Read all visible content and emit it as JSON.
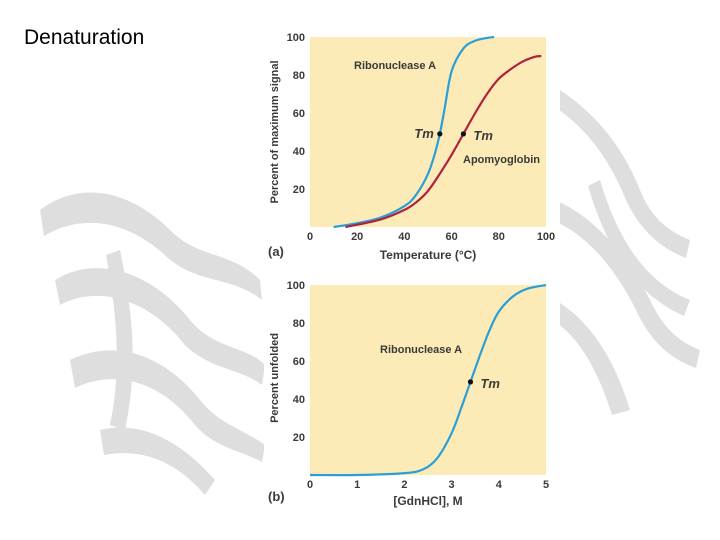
{
  "slide": {
    "title": "Denaturation"
  },
  "colors": {
    "plot_bg": "#fcebb6",
    "ribonuclease_curve": "#2a9fd6",
    "apomyoglobin_curve": "#b02040",
    "text": "#3a3a3a"
  },
  "chart_data": [
    {
      "panel_label": "(a)",
      "type": "line",
      "xlabel": "Temperature (°C)",
      "ylabel": "Percent of maximum signal",
      "xlim": [
        0,
        100
      ],
      "ylim": [
        0,
        100
      ],
      "x_ticks": [
        "0",
        "20",
        "40",
        "60",
        "80",
        "100"
      ],
      "y_ticks": [
        "20",
        "40",
        "60",
        "80",
        "100"
      ],
      "grid": false,
      "series": [
        {
          "name": "Ribonuclease A",
          "color": "#2a9fd6",
          "x": [
            10,
            20,
            30,
            40,
            45,
            50,
            53,
            55,
            57,
            60,
            65,
            70,
            75,
            78
          ],
          "y": [
            0,
            2,
            5,
            11,
            17,
            28,
            39,
            49,
            62,
            82,
            94,
            98,
            99.5,
            100
          ]
        },
        {
          "name": "Apomyoglobin",
          "color": "#b02040",
          "x": [
            15,
            30,
            40,
            45,
            50,
            55,
            60,
            65,
            70,
            75,
            80,
            85,
            90,
            95,
            98
          ],
          "y": [
            0,
            4,
            9,
            13,
            19,
            28,
            38,
            49,
            60,
            70,
            78,
            83,
            87,
            89.5,
            90
          ]
        }
      ],
      "annotations": [
        {
          "text": "Tm",
          "series": "Ribonuclease A",
          "x": 55,
          "y": 49
        },
        {
          "text": "Tm",
          "series": "Apomyoglobin",
          "x": 65,
          "y": 49
        }
      ]
    },
    {
      "panel_label": "(b)",
      "type": "line",
      "xlabel": "[GdnHCl], M",
      "ylabel": "Percent unfolded",
      "xlim": [
        0,
        5
      ],
      "ylim": [
        0,
        100
      ],
      "x_ticks": [
        "0",
        "1",
        "2",
        "3",
        "4",
        "5"
      ],
      "y_ticks": [
        "20",
        "40",
        "60",
        "80",
        "100"
      ],
      "grid": false,
      "series": [
        {
          "name": "Ribonuclease A",
          "color": "#2a9fd6",
          "x": [
            0,
            1,
            2,
            2.4,
            2.7,
            3.0,
            3.2,
            3.4,
            3.6,
            3.8,
            4.0,
            4.3,
            4.6,
            5.0
          ],
          "y": [
            0,
            0,
            1,
            3,
            9,
            22,
            35,
            49,
            63,
            76,
            86,
            94,
            98,
            100
          ]
        }
      ],
      "annotations": [
        {
          "text": "Tm",
          "series": "Ribonuclease A",
          "x": 3.4,
          "y": 49
        }
      ]
    }
  ]
}
